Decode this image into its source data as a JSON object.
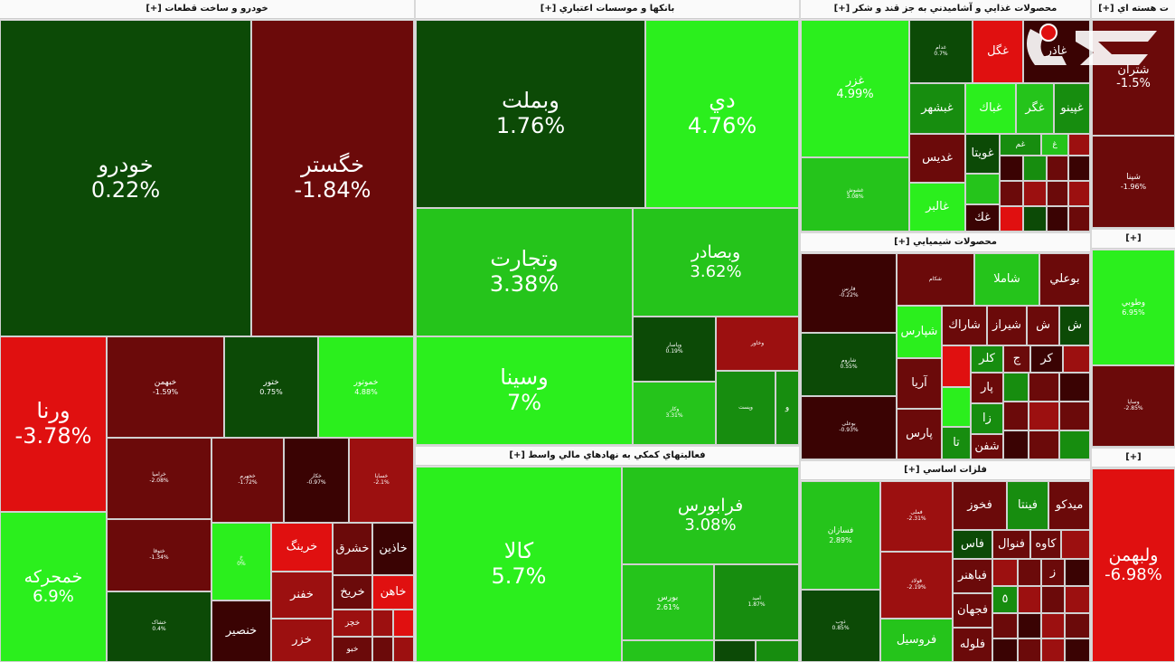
{
  "sectors": {
    "auto": "خودرو و ساخت قطعات [+]",
    "banks": "بانکها و موسسات اعتباري [+]",
    "food": "محصولات غذايي و آشاميدني به جز قند و شکر [+]",
    "nuclear": "ت هسته اي [+]",
    "chemical": "محصولات شيميايي [+]",
    "financial": "فعاليتهاي کمکي به نهادهاي مالي واسط [+]",
    "metals": "فلزات اساسي [+]",
    "pharma": "[+]",
    "right_mid": "[+]"
  },
  "tiles": {
    "khodro": {
      "name": "خودرو",
      "pct": "0.22%"
    },
    "khegstar": {
      "name": "خگستر",
      "pct": "-1.84%"
    },
    "varna": {
      "name": "ورنا",
      "pct": "-3.78%"
    },
    "khemharkeh": {
      "name": "خمحركه",
      "pct": "6.9%"
    },
    "khebahman": {
      "name": "خبهمن",
      "pct": "-1.59%"
    },
    "khetoor": {
      "name": "ختور",
      "pct": "0.75%"
    },
    "khemhotor": {
      "name": "خموتور",
      "pct": "4.88%"
    },
    "kheramia": {
      "name": "خرامیا",
      "pct": "-2.08%"
    },
    "khejahor": {
      "name": "خجهرم",
      "pct": "-1.72%"
    },
    "khemeh": {
      "name": "خکار",
      "pct": "-0.97%"
    },
    "khesepa": {
      "name": "خساپا",
      "pct": "-2.1%"
    },
    "khetoogha": {
      "name": "ختوقا",
      "pct": "-1.34%"
    },
    "khgreen1": {
      "name": "خ",
      "pct": "0%"
    },
    "khmsh": {
      "name": "خشاک",
      "pct": "0.4%"
    },
    "kharing": {
      "name": "خرینگ",
      "pct": ""
    },
    "khasharq": {
      "name": "خشرق",
      "pct": ""
    },
    "khazin": {
      "name": "خاذین",
      "pct": ""
    },
    "khefanar": {
      "name": "خفنر",
      "pct": ""
    },
    "khrikh": {
      "name": "خریخ",
      "pct": ""
    },
    "khahn": {
      "name": "خاهن",
      "pct": ""
    },
    "khensir": {
      "name": "خنصیر",
      "pct": ""
    },
    "khazar": {
      "name": "خزر",
      "pct": ""
    },
    "khojaz": {
      "name": "خچز",
      "pct": ""
    },
    "khoo": {
      "name": "خبو",
      "pct": ""
    },
    "vabmelat": {
      "name": "وبملت",
      "pct": "1.76%"
    },
    "day": {
      "name": "دي",
      "pct": "4.76%"
    },
    "vetejarat": {
      "name": "وتجارت",
      "pct": "3.38%"
    },
    "vebsader": {
      "name": "وبصادر",
      "pct": "3.62%"
    },
    "vasina": {
      "name": "وسينا",
      "pct": "7%"
    },
    "vepasar": {
      "name": "وپاسار",
      "pct": "0.19%"
    },
    "vb2": {
      "name": "وخاور",
      "pct": "0.41%"
    },
    "vb3": {
      "name": "وکار",
      "pct": "3.31%"
    },
    "vb4": {
      "name": "وپست",
      "pct": ""
    },
    "vb5": {
      "name": "و",
      "pct": ""
    },
    "kala": {
      "name": "كالا",
      "pct": "5.7%"
    },
    "farabours": {
      "name": "فرابورس",
      "pct": "3.08%"
    },
    "bours": {
      "name": "بورس",
      "pct": "2.61%"
    },
    "fin3": {
      "name": "امید",
      "pct": "1.87%"
    },
    "ghazar": {
      "name": "غزر",
      "pct": "4.99%"
    },
    "ghgol": {
      "name": "غگل",
      "pct": ""
    },
    "ghador": {
      "name": "غاذر",
      "pct": ""
    },
    "ghbeshahr": {
      "name": "غبشهر",
      "pct": ""
    },
    "ghbak": {
      "name": "غباك",
      "pct": ""
    },
    "ghgor": {
      "name": "غگر",
      "pct": ""
    },
    "ghpino": {
      "name": "غپینو",
      "pct": ""
    },
    "ghvita": {
      "name": "غويتا",
      "pct": ""
    },
    "ghdis": {
      "name": "غديس",
      "pct": ""
    },
    "ghlbar": {
      "name": "غالبر",
      "pct": ""
    },
    "ghghom": {
      "name": "غم",
      "pct": ""
    },
    "ghsm1": {
      "name": "غ",
      "pct": ""
    },
    "ghshvash": {
      "name": "غشوش",
      "pct": "3.08%"
    },
    "ghghak": {
      "name": "غك",
      "pct": ""
    },
    "ghtop": {
      "name": "غدام",
      "pct": "0.7%"
    },
    "khopars": {
      "name": "فارس",
      "pct": "-0.22%"
    },
    "shamla": {
      "name": "شاملا",
      "pct": ""
    },
    "bouali": {
      "name": "بوعلي",
      "pct": ""
    },
    "shpars": {
      "name": "شپارس",
      "pct": ""
    },
    "sharak": {
      "name": "شاراك",
      "pct": ""
    },
    "shiraz": {
      "name": "شيراز",
      "pct": ""
    },
    "shsm": {
      "name": "ش",
      "pct": ""
    },
    "aria": {
      "name": "آريا",
      "pct": ""
    },
    "pars": {
      "name": "پارس",
      "pct": ""
    },
    "shafan": {
      "name": "شفن",
      "pct": ""
    },
    "kalor": {
      "name": "كلر",
      "pct": ""
    },
    "shchem2": {
      "name": "شاروم",
      "pct": "0.55%"
    },
    "shchem3": {
      "name": "بوعلی",
      "pct": "-0.93%"
    },
    "shpar": {
      "name": "پار",
      "pct": ""
    },
    "shza": {
      "name": "زا",
      "pct": ""
    },
    "shta": {
      "name": "تا",
      "pct": ""
    },
    "shj": {
      "name": "ج",
      "pct": ""
    },
    "shkr": {
      "name": "كر",
      "pct": ""
    },
    "shem1": {
      "name": "شکام",
      "pct": ""
    },
    "fasazan": {
      "name": "فسازان",
      "pct": "2.89%"
    },
    "fmeli": {
      "name": "فملی",
      "pct": "-2.31%"
    },
    "fkhoz": {
      "name": "فخوز",
      "pct": ""
    },
    "fnita": {
      "name": "فينتا",
      "pct": ""
    },
    "midko": {
      "name": "ميدكو",
      "pct": ""
    },
    "fas": {
      "name": "فاس",
      "pct": ""
    },
    "fnoval": {
      "name": "فنوال",
      "pct": ""
    },
    "kaveh": {
      "name": "كاوه",
      "pct": ""
    },
    "fbahonar": {
      "name": "فباهنر",
      "pct": ""
    },
    "fjahan": {
      "name": "فجهان",
      "pct": ""
    },
    "folowleh": {
      "name": "فلوله",
      "pct": ""
    },
    "forosil": {
      "name": "فروسيل",
      "pct": ""
    },
    "fzob": {
      "name": "ذوب",
      "pct": "0.85%"
    },
    "fmeta": {
      "name": "فولاد",
      "pct": "-2.19%"
    },
    "fz": {
      "name": "ز",
      "pct": ""
    },
    "f5": {
      "name": "٥",
      "pct": ""
    },
    "shetran": {
      "name": "شتران",
      "pct": "-1.5%"
    },
    "shahna": {
      "name": "شپنا",
      "pct": "-1.96%"
    },
    "vetoobi": {
      "name": "وطوبي",
      "pct": "6.95%"
    },
    "vesapa": {
      "name": "وساپا",
      "pct": "-2.85%"
    },
    "vlbahman": {
      "name": "ولبهمن",
      "pct": "-6.98%"
    }
  }
}
